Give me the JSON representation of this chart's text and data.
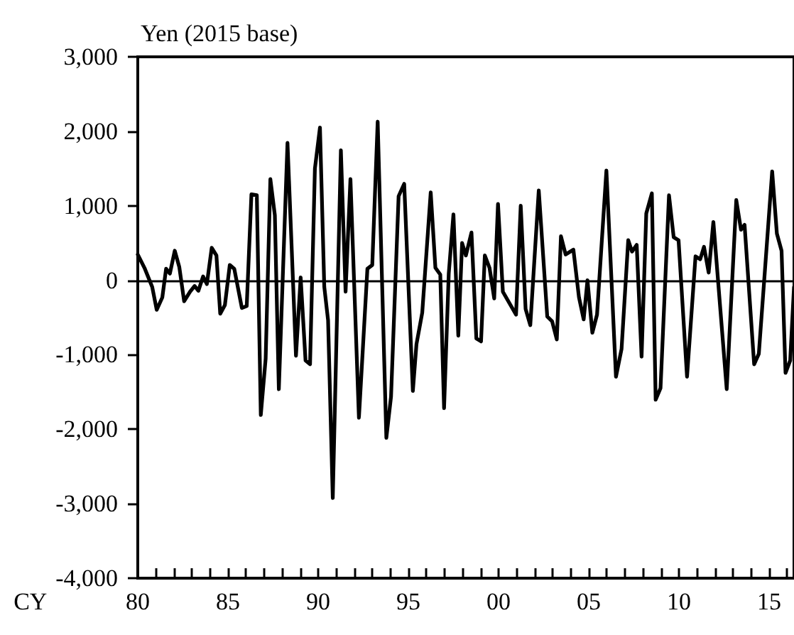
{
  "chart_data": {
    "type": "line",
    "ylabel": "Yen (2015 base)",
    "xlabel": "CY",
    "x": [
      1980.0,
      1980.37,
      1980.8,
      1981.05,
      1981.36,
      1981.57,
      1981.78,
      1982.05,
      1982.3,
      1982.57,
      1982.9,
      1983.15,
      1983.36,
      1983.62,
      1983.83,
      1984.1,
      1984.36,
      1984.57,
      1984.83,
      1985.1,
      1985.35,
      1985.77,
      1986.04,
      1986.3,
      1986.6,
      1986.82,
      1987.09,
      1987.35,
      1987.6,
      1987.82,
      1988.3,
      1988.77,
      1989.03,
      1989.3,
      1989.55,
      1989.82,
      1990.1,
      1990.34,
      1990.55,
      1990.81,
      1991.26,
      1991.52,
      1991.79,
      1992.26,
      1992.73,
      1993.0,
      1993.3,
      1993.78,
      1994.04,
      1994.46,
      1994.77,
      1995.25,
      1995.45,
      1995.77,
      1996.24,
      1996.5,
      1996.77,
      1996.98,
      1997.24,
      1997.5,
      1997.77,
      1997.98,
      1998.19,
      1998.5,
      1998.77,
      1999.03,
      1999.24,
      1999.5,
      1999.76,
      1999.97,
      2000.24,
      2000.97,
      2001.23,
      2001.5,
      2001.76,
      2002.23,
      2002.7,
      2002.97,
      2003.23,
      2003.46,
      2003.72,
      2004.15,
      2004.46,
      2004.72,
      2004.93,
      2005.2,
      2005.46,
      2005.98,
      2006.51,
      2006.82,
      2007.19,
      2007.4,
      2007.66,
      2007.93,
      2008.19,
      2008.5,
      2008.71,
      2008.98,
      2009.45,
      2009.71,
      2009.98,
      2010.45,
      2010.92,
      2011.18,
      2011.39,
      2011.65,
      2011.91,
      2012.65,
      2013.18,
      2013.44,
      2013.64,
      2014.17,
      2014.43,
      2015.17,
      2015.43,
      2015.69,
      2015.91,
      2016.17,
      2016.38
    ],
    "values": [
      346,
      167,
      -90,
      -397,
      -231,
      154,
      90,
      397,
      180,
      -282,
      -154,
      -77,
      -141,
      51,
      -51,
      436,
      333,
      -449,
      -333,
      205,
      154,
      -372,
      -346,
      1154,
      1141,
      -1808,
      -1051,
      1359,
      872,
      -1462,
      1846,
      -1013,
      38,
      -1077,
      -1128,
      1500,
      2050,
      -90,
      -538,
      -2923,
      1744,
      -154,
      1359,
      -1846,
      154,
      205,
      2130,
      -2115,
      -1564,
      1128,
      1295,
      -1487,
      -859,
      -436,
      1180,
      167,
      77,
      -1718,
      90,
      885,
      -744,
      500,
      333,
      641,
      -782,
      -821,
      333,
      167,
      -244,
      1026,
      -154,
      -462,
      1000,
      -385,
      -603,
      1205,
      -487,
      -551,
      -795,
      590,
      346,
      410,
      -231,
      -526,
      0,
      -705,
      -462,
      1474,
      -1295,
      -923,
      538,
      385,
      474,
      -1026,
      897,
      1167,
      -1603,
      -1449,
      1141,
      577,
      538,
      -1295,
      321,
      282,
      449,
      103,
      782,
      -1462,
      1077,
      679,
      744,
      -1128,
      -987,
      1462,
      628,
      397,
      -1244,
      -1077,
      -90
    ],
    "color": "#000000",
    "marker": "none",
    "line_style": "solid",
    "xlim": [
      1980,
      2016.38
    ],
    "ylim": [
      -4000,
      3000
    ],
    "xticks": [
      {
        "value": 1980,
        "label": "80"
      },
      {
        "value": 1981,
        "label": null
      },
      {
        "value": 1982,
        "label": null
      },
      {
        "value": 1983,
        "label": null
      },
      {
        "value": 1984,
        "label": null
      },
      {
        "value": 1985,
        "label": "85"
      },
      {
        "value": 1986,
        "label": null
      },
      {
        "value": 1987,
        "label": null
      },
      {
        "value": 1988,
        "label": null
      },
      {
        "value": 1989,
        "label": null
      },
      {
        "value": 1990,
        "label": "90"
      },
      {
        "value": 1991,
        "label": null
      },
      {
        "value": 1992,
        "label": null
      },
      {
        "value": 1993,
        "label": null
      },
      {
        "value": 1994,
        "label": null
      },
      {
        "value": 1995,
        "label": "95"
      },
      {
        "value": 1996,
        "label": null
      },
      {
        "value": 1997,
        "label": null
      },
      {
        "value": 1998,
        "label": null
      },
      {
        "value": 1999,
        "label": null
      },
      {
        "value": 2000,
        "label": "00"
      },
      {
        "value": 2001,
        "label": null
      },
      {
        "value": 2002,
        "label": null
      },
      {
        "value": 2003,
        "label": null
      },
      {
        "value": 2004,
        "label": null
      },
      {
        "value": 2005,
        "label": "05"
      },
      {
        "value": 2006,
        "label": null
      },
      {
        "value": 2007,
        "label": null
      },
      {
        "value": 2008,
        "label": null
      },
      {
        "value": 2009,
        "label": null
      },
      {
        "value": 2010,
        "label": "10"
      },
      {
        "value": 2011,
        "label": null
      },
      {
        "value": 2012,
        "label": null
      },
      {
        "value": 2013,
        "label": null
      },
      {
        "value": 2014,
        "label": null
      },
      {
        "value": 2015,
        "label": "15"
      },
      {
        "value": 2016,
        "label": null
      }
    ],
    "yticks": [
      {
        "value": -4000,
        "label": "-4,000"
      },
      {
        "value": -3000,
        "label": "-3,000"
      },
      {
        "value": -2000,
        "label": "-2,000"
      },
      {
        "value": -1000,
        "label": "-1,000"
      },
      {
        "value": 0,
        "label": "0"
      },
      {
        "value": 1000,
        "label": "1,000"
      },
      {
        "value": 2000,
        "label": "2,000"
      },
      {
        "value": 3000,
        "label": "3,000"
      }
    ],
    "ref_lines": [
      {
        "axis": "y",
        "value": 0,
        "color": "#000000"
      }
    ],
    "grid": false
  }
}
